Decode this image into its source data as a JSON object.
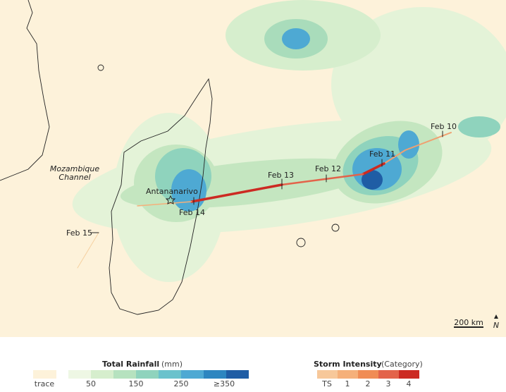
{
  "map": {
    "dates": [
      "Feb 10",
      "Feb 11",
      "Feb 12",
      "Feb 13",
      "Feb 14",
      "Feb 15"
    ],
    "place": "Antananarivo",
    "water_label": [
      "Mozambique",
      "Channel"
    ],
    "scale": "200 km",
    "north": "N",
    "rain_legend": {
      "title": "Total Rainfall",
      "unit": "(mm)",
      "trace": "trace",
      "labels": [
        "50",
        "150",
        "250",
        "≥350"
      ]
    },
    "storm_legend": {
      "title": "Storm Intensity",
      "unit": "(Category)",
      "labels": [
        "TS",
        "1",
        "2",
        "3",
        "4"
      ]
    }
  }
}
